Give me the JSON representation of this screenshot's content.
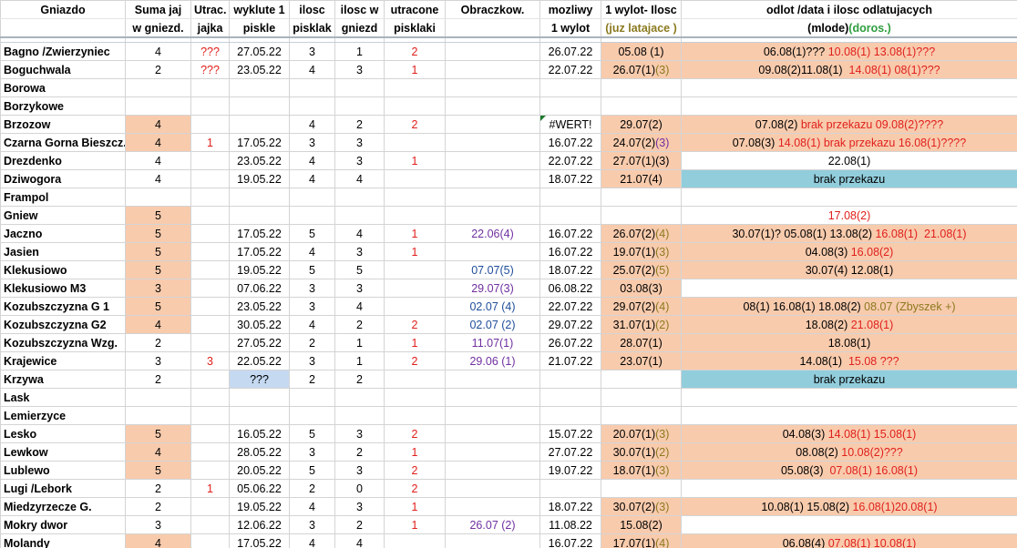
{
  "headers": [
    [
      "Gniazdo",
      ""
    ],
    [
      "Suma jaj",
      "w gniezd."
    ],
    [
      "Utrac.",
      "jajka"
    ],
    [
      "wyklute 1",
      "piskle"
    ],
    [
      "ilosc",
      "pisklak"
    ],
    [
      "ilosc w",
      "gniezd"
    ],
    [
      "utracone",
      "pisklaki"
    ],
    [
      "Obraczkow.",
      ""
    ],
    [
      "mozliwy",
      "1 wylot"
    ],
    [
      "1 wylot- Ilosc",
      "(juz latajace )"
    ],
    [
      "odlot /data i ilosc odlatujacych",
      "(mlode)(doros.)"
    ]
  ],
  "header_parts": {
    "wylot_sub": "(juz latajace )",
    "odlot_sub_a": "(mlode)",
    "odlot_sub_b": "(doros.)"
  },
  "colors": {
    "peach": "#f8cbad",
    "teal": "#92cddc",
    "light_blue": "#c5d9f1",
    "red": "#e0201c",
    "purple": "#7030a0",
    "green": "#2f9e3f"
  },
  "rows": [
    {
      "name": "Bagno /Zwierzyniec",
      "suma": "4",
      "utrac": "???",
      "wyklute": "27.05.22",
      "ilosc": "3",
      "iloscw": "1",
      "utracone": "2",
      "obr": "",
      "mozliwy": "26.07.22",
      "wylot": [
        [
          "05.08 (1)",
          ""
        ]
      ],
      "odlot": [
        [
          "06.08(1)??? ",
          ""
        ],
        [
          "10.08(1) 13.08(1)???",
          "red"
        ]
      ],
      "suma_bg": "",
      "wylot_bg": "peach",
      "odlot_bg": "peach"
    },
    {
      "name": "Boguchwala",
      "suma": "2",
      "utrac": "???",
      "wyklute": "23.05.22",
      "ilosc": "4",
      "iloscw": "3",
      "utracone": "1",
      "obr": "",
      "mozliwy": "22.07.22",
      "wylot": [
        [
          "26.07(1)",
          ""
        ],
        [
          "(3)",
          "olive"
        ]
      ],
      "odlot": [
        [
          "09.08(2)11.08(1)  ",
          ""
        ],
        [
          "14.08(1) 08(1)???",
          "red"
        ]
      ],
      "suma_bg": "",
      "wylot_bg": "peach",
      "odlot_bg": "peach"
    },
    {
      "name": "Borowa",
      "suma": "",
      "utrac": "",
      "wyklute": "",
      "ilosc": "",
      "iloscw": "",
      "utracone": "",
      "obr": "",
      "mozliwy": "",
      "wylot": [],
      "odlot": [],
      "suma_bg": "",
      "wylot_bg": "",
      "odlot_bg": ""
    },
    {
      "name": "Borzykowe",
      "suma": "",
      "utrac": "",
      "wyklute": "",
      "ilosc": "",
      "iloscw": "",
      "utracone": "",
      "obr": "",
      "mozliwy": "",
      "wylot": [],
      "odlot": [],
      "suma_bg": "",
      "wylot_bg": "",
      "odlot_bg": ""
    },
    {
      "name": "Brzozow",
      "suma": "4",
      "utrac": "",
      "wyklute": "",
      "ilosc": "4",
      "iloscw": "2",
      "utracone": "2",
      "obr": "",
      "mozliwy": "#WERT!",
      "wylot": [
        [
          "29.07(2)",
          ""
        ]
      ],
      "odlot": [
        [
          "07.08(2) ",
          ""
        ],
        [
          "brak przekazu 09.08(2)????",
          "red"
        ]
      ],
      "suma_bg": "peach",
      "wylot_bg": "peach",
      "odlot_bg": "peach"
    },
    {
      "name": "Czarna Gorna Bieszcz.",
      "suma": "4",
      "utrac": "1",
      "wyklute": "17.05.22",
      "ilosc": "3",
      "iloscw": "3",
      "utracone": "",
      "obr": "",
      "mozliwy": "16.07.22",
      "wylot": [
        [
          "24.07(2)",
          ""
        ],
        [
          "(3)",
          "purple"
        ]
      ],
      "odlot": [
        [
          "07.08(3) ",
          ""
        ],
        [
          "14.08(1) brak przekazu 16.08(1)????",
          "red"
        ]
      ],
      "suma_bg": "peach",
      "wylot_bg": "peach",
      "odlot_bg": "peach"
    },
    {
      "name": "Drezdenko",
      "suma": "4",
      "utrac": "",
      "wyklute": "23.05.22",
      "ilosc": "4",
      "iloscw": "3",
      "utracone": "1",
      "obr": "",
      "mozliwy": "22.07.22",
      "wylot": [
        [
          "27.07(1)(3)",
          ""
        ]
      ],
      "odlot": [
        [
          "22.08(1)",
          ""
        ]
      ],
      "suma_bg": "",
      "wylot_bg": "peach",
      "odlot_bg": ""
    },
    {
      "name": "Dziwogora",
      "suma": "4",
      "utrac": "",
      "wyklute": "19.05.22",
      "ilosc": "4",
      "iloscw": "4",
      "utracone": "",
      "obr": "",
      "mozliwy": "18.07.22",
      "wylot": [
        [
          "21.07(4)",
          ""
        ]
      ],
      "odlot": [
        [
          "brak przekazu",
          ""
        ]
      ],
      "suma_bg": "",
      "wylot_bg": "peach",
      "odlot_bg": "teal"
    },
    {
      "name": "Frampol",
      "suma": "",
      "utrac": "",
      "wyklute": "",
      "ilosc": "",
      "iloscw": "",
      "utracone": "",
      "obr": "",
      "mozliwy": "",
      "wylot": [],
      "odlot": [],
      "suma_bg": "",
      "wylot_bg": "",
      "odlot_bg": ""
    },
    {
      "name": "Gniew",
      "suma": "5",
      "utrac": "",
      "wyklute": "",
      "ilosc": "",
      "iloscw": "",
      "utracone": "",
      "obr": "",
      "mozliwy": "",
      "wylot": [],
      "odlot": [
        [
          "17.08(2)",
          "red"
        ]
      ],
      "suma_bg": "peach",
      "wylot_bg": "",
      "odlot_bg": ""
    },
    {
      "name": "Jaczno",
      "suma": "5",
      "utrac": "",
      "wyklute": "17.05.22",
      "ilosc": "5",
      "iloscw": "4",
      "utracone": "1",
      "obr": "22.06(4)",
      "obr_color": "purple",
      "mozliwy": "16.07.22",
      "wylot": [
        [
          "26.07(2)",
          ""
        ],
        [
          "(4)",
          "olive"
        ]
      ],
      "odlot": [
        [
          "30.07(1)? 05.08(1) 13.08(2) ",
          ""
        ],
        [
          "16.08(1)  21.08(1)",
          "red"
        ]
      ],
      "suma_bg": "peach",
      "wylot_bg": "peach",
      "odlot_bg": "peach"
    },
    {
      "name": "Jasien",
      "suma": "5",
      "utrac": "",
      "wyklute": "17.05.22",
      "ilosc": "4",
      "iloscw": "3",
      "utracone": "1",
      "obr": "",
      "mozliwy": "16.07.22",
      "wylot": [
        [
          "19.07(1)",
          ""
        ],
        [
          "(3)",
          "olive"
        ]
      ],
      "odlot": [
        [
          "04.08(3) ",
          ""
        ],
        [
          "16.08(2)",
          "red"
        ]
      ],
      "suma_bg": "peach",
      "wylot_bg": "peach",
      "odlot_bg": "peach"
    },
    {
      "name": "Klekusiowo",
      "suma": "5",
      "utrac": "",
      "wyklute": "19.05.22",
      "ilosc": "5",
      "iloscw": "5",
      "utracone": "",
      "obr": "07.07(5)",
      "obr_color": "blue",
      "mozliwy": "18.07.22",
      "wylot": [
        [
          "25.07(2)",
          ""
        ],
        [
          "(5)",
          "olive"
        ]
      ],
      "odlot": [
        [
          "30.07(4) 12.08(1)",
          ""
        ]
      ],
      "suma_bg": "peach",
      "wylot_bg": "peach",
      "odlot_bg": "peach"
    },
    {
      "name": "Klekusiowo M3",
      "suma": "3",
      "utrac": "",
      "wyklute": "07.06.22",
      "ilosc": "3",
      "iloscw": "3",
      "utracone": "",
      "obr": "29.07(3)",
      "obr_color": "purple",
      "mozliwy": "06.08.22",
      "wylot": [
        [
          "03.08(3)",
          ""
        ]
      ],
      "odlot": [],
      "suma_bg": "peach",
      "wylot_bg": "peach",
      "odlot_bg": ""
    },
    {
      "name": "Kozubszczyzna G 1",
      "suma": "5",
      "utrac": "",
      "wyklute": "23.05.22",
      "ilosc": "3",
      "iloscw": "4",
      "utracone": "",
      "obr": "02.07 (4)",
      "obr_color": "blue",
      "mozliwy": "22.07.22",
      "wylot": [
        [
          "29.07(2)",
          ""
        ],
        [
          "(4)",
          "olive"
        ]
      ],
      "odlot": [
        [
          "08(1) 16.08(1) 18.08(2) ",
          ""
        ],
        [
          "08.07 (Zbyszek +)",
          "olive"
        ]
      ],
      "suma_bg": "peach",
      "wylot_bg": "peach",
      "odlot_bg": "peach"
    },
    {
      "name": "Kozubszczyzna G2",
      "suma": "4",
      "utrac": "",
      "wyklute": "30.05.22",
      "ilosc": "4",
      "iloscw": "2",
      "utracone": "2",
      "obr": "02.07 (2)",
      "obr_color": "blue",
      "mozliwy": "29.07.22",
      "wylot": [
        [
          "31.07(1)",
          ""
        ],
        [
          "(2)",
          "olive"
        ]
      ],
      "odlot": [
        [
          "18.08(2) ",
          ""
        ],
        [
          "21.08(1)",
          "red"
        ]
      ],
      "suma_bg": "peach",
      "wylot_bg": "peach",
      "odlot_bg": "peach"
    },
    {
      "name": "Kozubszczyzna Wzg.",
      "suma": "2",
      "utrac": "",
      "wyklute": "27.05.22",
      "ilosc": "2",
      "iloscw": "1",
      "utracone": "1",
      "obr": "11.07(1)",
      "obr_color": "purple",
      "mozliwy": "26.07.22",
      "wylot": [
        [
          "28.07(1)",
          ""
        ]
      ],
      "odlot": [
        [
          "18.08(1)",
          ""
        ]
      ],
      "suma_bg": "",
      "wylot_bg": "peach",
      "odlot_bg": "peach"
    },
    {
      "name": "Krajewice",
      "suma": "3",
      "utrac": "3",
      "wyklute": "22.05.22",
      "ilosc": "3",
      "iloscw": "1",
      "utracone": "2",
      "obr": "29.06 (1)",
      "obr_color": "purple",
      "mozliwy": "21.07.22",
      "wylot": [
        [
          "23.07(1)",
          ""
        ]
      ],
      "odlot": [
        [
          "14.08(1)  ",
          ""
        ],
        [
          "15.08 ???",
          "red"
        ]
      ],
      "suma_bg": "",
      "wylot_bg": "peach",
      "odlot_bg": "peach"
    },
    {
      "name": "Krzywa",
      "suma": "2",
      "utrac": "",
      "wyklute": "???",
      "wyklute_bg": "lblue",
      "ilosc": "2",
      "iloscw": "2",
      "utracone": "",
      "obr": "",
      "mozliwy": "",
      "wylot": [],
      "odlot": [
        [
          "brak przekazu",
          ""
        ]
      ],
      "suma_bg": "",
      "wylot_bg": "",
      "odlot_bg": "teal"
    },
    {
      "name": "Lask",
      "suma": "",
      "utrac": "",
      "wyklute": "",
      "ilosc": "",
      "iloscw": "",
      "utracone": "",
      "obr": "",
      "mozliwy": "",
      "wylot": [],
      "odlot": [],
      "suma_bg": "",
      "wylot_bg": "",
      "odlot_bg": ""
    },
    {
      "name": "Lemierzyce",
      "suma": "",
      "utrac": "",
      "wyklute": "",
      "ilosc": "",
      "iloscw": "",
      "utracone": "",
      "obr": "",
      "mozliwy": "",
      "wylot": [],
      "odlot": [],
      "suma_bg": "",
      "wylot_bg": "",
      "odlot_bg": ""
    },
    {
      "name": "Lesko",
      "suma": "5",
      "utrac": "",
      "wyklute": "16.05.22",
      "ilosc": "5",
      "iloscw": "3",
      "utracone": "2",
      "obr": "",
      "mozliwy": "15.07.22",
      "wylot": [
        [
          "20.07(1)",
          ""
        ],
        [
          "(3)",
          "olive"
        ]
      ],
      "odlot": [
        [
          "04.08(3) ",
          ""
        ],
        [
          "14.08(1) 15.08(1)",
          "red"
        ]
      ],
      "suma_bg": "peach",
      "wylot_bg": "peach",
      "odlot_bg": "peach"
    },
    {
      "name": "Lewkow",
      "suma": "4",
      "utrac": "",
      "wyklute": "28.05.22",
      "ilosc": "3",
      "iloscw": "2",
      "utracone": "1",
      "obr": "",
      "mozliwy": "27.07.22",
      "wylot": [
        [
          "30.07(1)",
          ""
        ],
        [
          "(2)",
          "olive"
        ]
      ],
      "odlot": [
        [
          "08.08(2) ",
          ""
        ],
        [
          "10.08(2)???",
          "red"
        ]
      ],
      "suma_bg": "peach",
      "wylot_bg": "peach",
      "odlot_bg": "peach"
    },
    {
      "name": "Lublewo",
      "suma": "5",
      "utrac": "",
      "wyklute": "20.05.22",
      "ilosc": "5",
      "iloscw": "3",
      "utracone": "2",
      "obr": "",
      "mozliwy": "19.07.22",
      "wylot": [
        [
          "18.07(1)",
          ""
        ],
        [
          "(3)",
          "olive"
        ]
      ],
      "odlot": [
        [
          "05.08(3)  ",
          ""
        ],
        [
          "07.08(1) 16.08(1)",
          "red"
        ]
      ],
      "suma_bg": "peach",
      "wylot_bg": "peach",
      "odlot_bg": "peach"
    },
    {
      "name": "Lugi /Lebork",
      "suma": "2",
      "utrac": "1",
      "wyklute": "05.06.22",
      "ilosc": "2",
      "iloscw": "0",
      "utracone": "2",
      "obr": "",
      "mozliwy": "",
      "wylot": [],
      "odlot": [],
      "suma_bg": "",
      "wylot_bg": "",
      "odlot_bg": ""
    },
    {
      "name": "Miedzyrzecze G.",
      "suma": "2",
      "utrac": "",
      "wyklute": "19.05.22",
      "ilosc": "4",
      "iloscw": "3",
      "utracone": "1",
      "obr": "",
      "mozliwy": "18.07.22",
      "wylot": [
        [
          "30.07(2)",
          ""
        ],
        [
          "(3)",
          "olive"
        ]
      ],
      "odlot": [
        [
          "10.08(1) 15.08(2) ",
          ""
        ],
        [
          "16.08(1)20.08(1)",
          "red"
        ]
      ],
      "suma_bg": "",
      "wylot_bg": "peach",
      "odlot_bg": "peach"
    },
    {
      "name": "Mokry dwor",
      "suma": "3",
      "utrac": "",
      "wyklute": "12.06.22",
      "ilosc": "3",
      "iloscw": "2",
      "utracone": "1",
      "obr": "26.07 (2)",
      "obr_color": "purple",
      "mozliwy": "11.08.22",
      "wylot": [
        [
          "15.08(2)",
          ""
        ]
      ],
      "odlot": [],
      "suma_bg": "",
      "wylot_bg": "peach",
      "odlot_bg": ""
    },
    {
      "name": "Molandy",
      "suma": "4",
      "utrac": "",
      "wyklute": "17.05.22",
      "ilosc": "4",
      "iloscw": "4",
      "utracone": "",
      "obr": "",
      "mozliwy": "16.07.22",
      "wylot": [
        [
          "17.07(1)",
          ""
        ],
        [
          "(4)",
          "olive"
        ]
      ],
      "odlot": [
        [
          "06.08(4) ",
          ""
        ],
        [
          "07.08(1) 10.08(1)",
          "red"
        ]
      ],
      "suma_bg": "peach",
      "wylot_bg": "peach",
      "odlot_bg": "peach"
    }
  ]
}
